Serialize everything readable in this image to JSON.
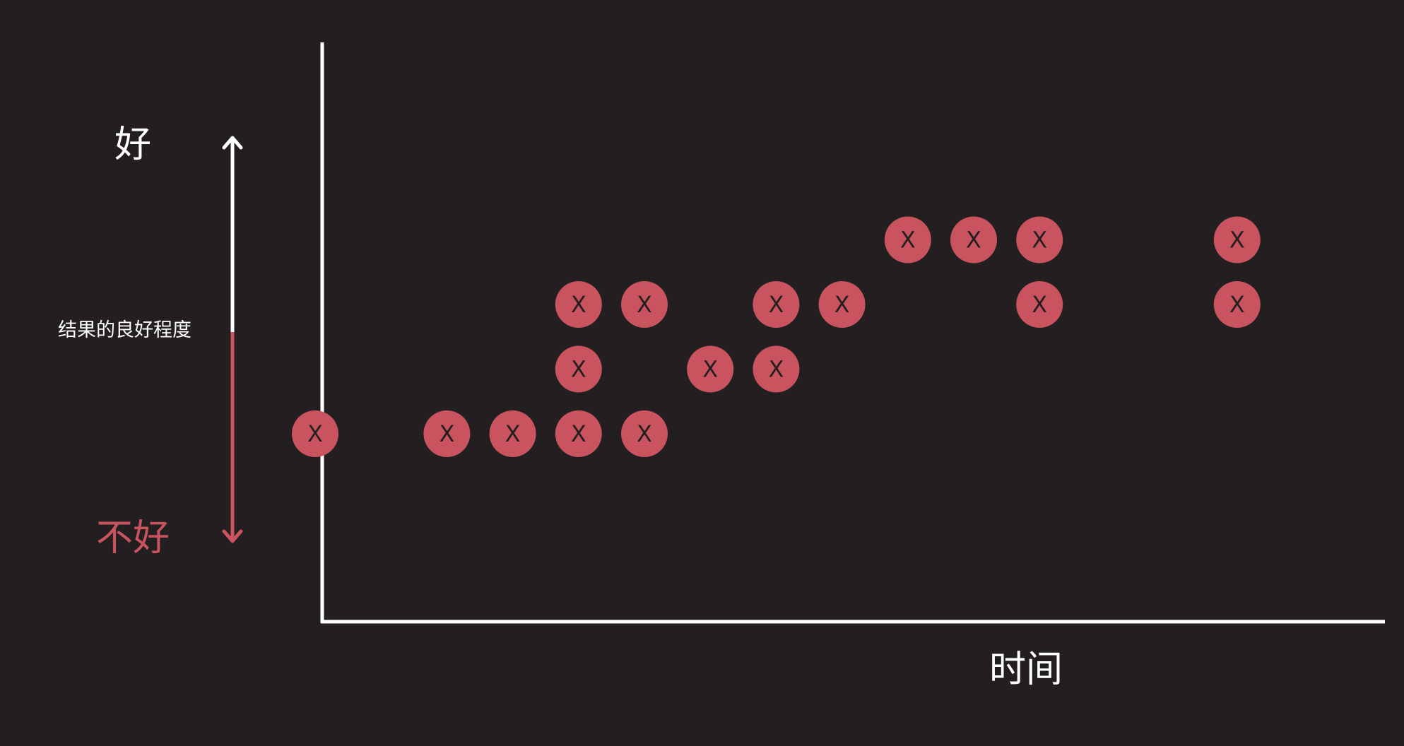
{
  "chart_data": {
    "type": "scatter",
    "title": "",
    "xlabel": "时间",
    "ylabel": "结果的良好程度",
    "y_axis_labels": {
      "top": "好",
      "bottom": "不好"
    },
    "marker_label": "X",
    "grid": false,
    "levels": [
      1,
      2,
      3,
      4
    ],
    "x_range": [
      0,
      20
    ],
    "points": [
      {
        "x": 1,
        "y": 1
      },
      {
        "x": 3,
        "y": 1
      },
      {
        "x": 4,
        "y": 1
      },
      {
        "x": 5,
        "y": 1
      },
      {
        "x": 5,
        "y": 2
      },
      {
        "x": 5,
        "y": 3
      },
      {
        "x": 6,
        "y": 1
      },
      {
        "x": 6,
        "y": 3
      },
      {
        "x": 7,
        "y": 2
      },
      {
        "x": 8,
        "y": 2
      },
      {
        "x": 8,
        "y": 3
      },
      {
        "x": 9,
        "y": 3
      },
      {
        "x": 10,
        "y": 4
      },
      {
        "x": 11,
        "y": 4
      },
      {
        "x": 12,
        "y": 3
      },
      {
        "x": 12,
        "y": 4
      },
      {
        "x": 15,
        "y": 3
      },
      {
        "x": 15,
        "y": 4
      }
    ]
  },
  "colors": {
    "background": "#231f20",
    "marker": "#c9545f",
    "axis": "#ffffff",
    "bad": "#c9545f"
  }
}
